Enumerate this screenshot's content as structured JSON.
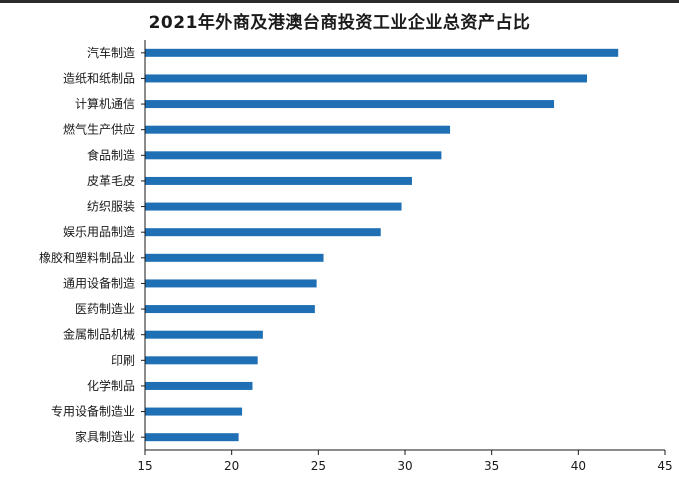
{
  "chart_data": {
    "type": "bar",
    "orientation": "horizontal",
    "title": "2021年外商及港澳台商投资工业企业总资产占比",
    "xlabel": "",
    "ylabel": "",
    "categories": [
      "汽车制造",
      "造纸和纸制品",
      "计算机通信",
      "燃气生产供应",
      "食品制造",
      "皮革毛皮",
      "纺织服装",
      "娱乐用品制造",
      "橡胶和塑料制品业",
      "通用设备制造",
      "医药制造业",
      "金属制品机械",
      "印刷",
      "化学制品",
      "专用设备制造业",
      "家具制造业"
    ],
    "values": [
      42.3,
      40.5,
      38.6,
      32.6,
      32.1,
      30.4,
      29.8,
      28.6,
      25.3,
      24.9,
      24.8,
      21.8,
      21.5,
      21.2,
      20.6,
      20.4
    ],
    "xlim": [
      15,
      45
    ],
    "xticks": [
      15,
      20,
      25,
      30,
      35,
      40,
      45
    ],
    "bar_color": "#1f6fb5",
    "grid": false,
    "legend": "none"
  }
}
